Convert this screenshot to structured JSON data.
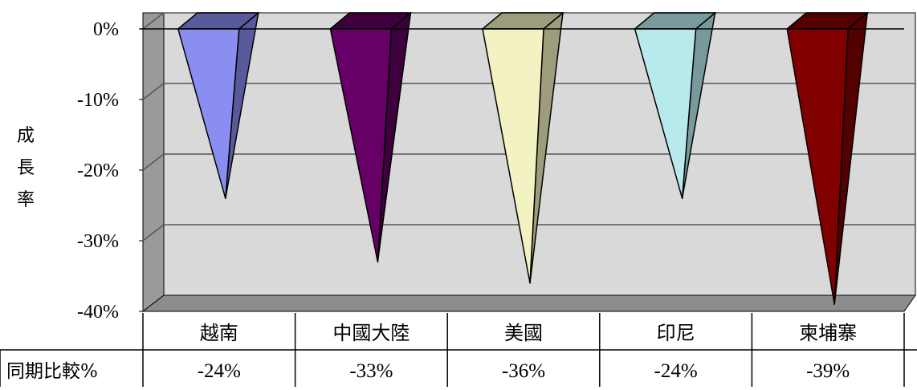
{
  "chart_data": {
    "type": "bar",
    "title": "",
    "ylabel": "成長率",
    "xlabel": "",
    "categories": [
      "越南",
      "中國大陸",
      "美國",
      "印尼",
      "柬埔寨"
    ],
    "series": [
      {
        "name": "同期比較%",
        "values": [
          -24,
          -33,
          -36,
          -24,
          -39
        ]
      }
    ],
    "ylim": [
      -40,
      0
    ],
    "yticks": [
      0,
      -10,
      -20,
      -30,
      -40
    ],
    "ytick_labels": [
      "0%",
      "-10%",
      "-20%",
      "-30%",
      "-40%"
    ],
    "grid": true,
    "bar_shape": "3d-cone",
    "data_table": {
      "row_label": "同期比較%",
      "values": [
        "-24%",
        "-33%",
        "-36%",
        "-24%",
        "-39%"
      ]
    },
    "colors": {
      "wall": "#d9d9d9",
      "side_wall": "#9a9a9a",
      "floor": "#8c8c8c",
      "bars": [
        "#8a8ef0",
        "#660066",
        "#f2f2c2",
        "#b8eaed",
        "#800000"
      ],
      "bar_sides": [
        "#595a9c",
        "#3d003d",
        "#9d9d7c",
        "#789a9c",
        "#520000"
      ]
    }
  }
}
